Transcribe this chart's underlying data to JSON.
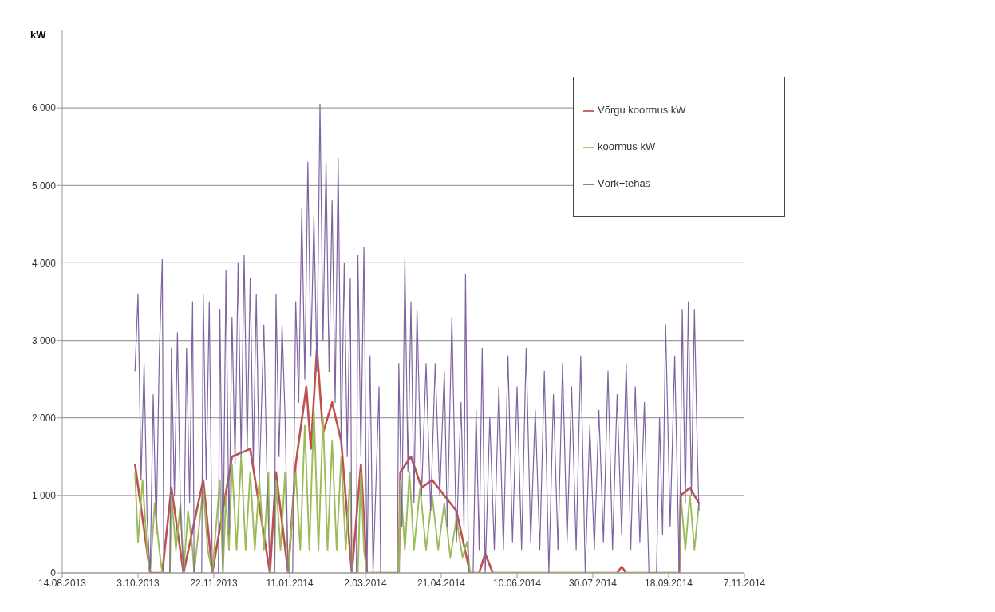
{
  "chart_data": {
    "type": "line",
    "ylabel": "kW",
    "xlim": [
      "2013-08-14",
      "2014-11-07"
    ],
    "xticks": [
      {
        "value": "2013-08-14",
        "label": "14.08.2013"
      },
      {
        "value": "2013-10-03",
        "label": "3.10.2013"
      },
      {
        "value": "2013-11-22",
        "label": "22.11.2013"
      },
      {
        "value": "2014-01-11",
        "label": "11.01.2014"
      },
      {
        "value": "2014-03-02",
        "label": "2.03.2014"
      },
      {
        "value": "2014-04-21",
        "label": "21.04.2014"
      },
      {
        "value": "2014-06-10",
        "label": "10.06.2014"
      },
      {
        "value": "2014-07-30",
        "label": "30.07.2014"
      },
      {
        "value": "2014-09-18",
        "label": "18.09.2014"
      },
      {
        "value": "2014-11-07",
        "label": "7.11.2014"
      }
    ],
    "ylim": [
      0,
      7000
    ],
    "yticks": [
      0,
      {
        "value": 1000,
        "label": "1 000"
      },
      {
        "value": 2000,
        "label": "2 000"
      },
      {
        "value": 3000,
        "label": "3 000"
      },
      {
        "value": 4000,
        "label": "4 000"
      },
      {
        "value": 5000,
        "label": "5 000"
      },
      {
        "value": 6000,
        "label": "6 000"
      }
    ],
    "grid": "y",
    "legend": "top right",
    "marker": "none",
    "line_style": "solid",
    "series": [
      {
        "name": "Võrgu koormus kW",
        "color": "#c0504d",
        "x": [
          "2013-10-01",
          "2013-10-11",
          "2013-10-19",
          "2013-10-25",
          "2013-11-02",
          "2013-11-15",
          "2013-11-21",
          "2013-12-04",
          "2013-12-16",
          "2013-12-29",
          "2014-01-02",
          "2014-01-10",
          "2014-01-15",
          "2014-01-22",
          "2014-01-25",
          "2014-01-29",
          "2014-02-02",
          "2014-02-08",
          "2014-02-14",
          "2014-02-21",
          "2014-02-27",
          "2014-03-03",
          "2014-03-24",
          "2014-03-25",
          "2014-04-01",
          "2014-04-08",
          "2014-04-15",
          "2014-04-23",
          "2014-05-01",
          "2014-05-10",
          "2014-05-16",
          "2014-05-20",
          "2014-05-25",
          "2014-08-15",
          "2014-08-18",
          "2014-08-21",
          "2014-09-25",
          "2014-09-26",
          "2014-10-02",
          "2014-10-08"
        ],
        "values": [
          1400,
          0,
          0,
          1100,
          0,
          1200,
          0,
          1500,
          1600,
          0,
          1300,
          0,
          1400,
          2400,
          1600,
          2900,
          1800,
          2200,
          1700,
          0,
          1400,
          0,
          0,
          1300,
          1500,
          1100,
          1200,
          1000,
          800,
          0,
          0,
          250,
          0,
          0,
          80,
          0,
          0,
          1000,
          1100,
          900
        ]
      },
      {
        "name": "koormus kW",
        "color": "#9bbb59",
        "x": [
          "2013-10-01",
          "2013-10-03",
          "2013-10-06",
          "2013-10-09",
          "2013-10-11",
          "2013-10-14",
          "2013-10-17",
          "2013-10-19",
          "2013-10-24",
          "2013-10-25",
          "2013-10-28",
          "2013-10-31",
          "2013-11-02",
          "2013-11-05",
          "2013-11-08",
          "2013-11-09",
          "2013-11-15",
          "2013-11-18",
          "2013-11-21",
          "2013-11-26",
          "2013-11-28",
          "2013-11-30",
          "2013-12-02",
          "2013-12-04",
          "2013-12-07",
          "2013-12-10",
          "2013-12-13",
          "2013-12-16",
          "2013-12-19",
          "2013-12-22",
          "2013-12-25",
          "2013-12-28",
          "2013-12-29",
          "2014-01-01",
          "2014-01-02",
          "2014-01-05",
          "2014-01-08",
          "2014-01-10",
          "2014-01-15",
          "2014-01-18",
          "2014-01-21",
          "2014-01-24",
          "2014-01-27",
          "2014-01-30",
          "2014-02-02",
          "2014-02-05",
          "2014-02-08",
          "2014-02-11",
          "2014-02-14",
          "2014-02-17",
          "2014-02-20",
          "2014-02-21",
          "2014-02-25",
          "2014-02-27",
          "2014-03-01",
          "2014-03-03",
          "2014-03-24",
          "2014-03-25",
          "2014-03-28",
          "2014-03-31",
          "2014-04-03",
          "2014-04-07",
          "2014-04-11",
          "2014-04-15",
          "2014-04-19",
          "2014-04-23",
          "2014-04-27",
          "2014-05-01",
          "2014-05-05",
          "2014-05-08",
          "2014-05-10",
          "2014-09-25",
          "2014-09-26",
          "2014-09-29",
          "2014-10-02",
          "2014-10-05",
          "2014-10-08"
        ],
        "values": [
          1300,
          400,
          1200,
          300,
          0,
          900,
          300,
          0,
          0,
          1000,
          300,
          900,
          0,
          800,
          300,
          0,
          1100,
          300,
          0,
          1200,
          0,
          1000,
          300,
          1400,
          300,
          1500,
          300,
          1300,
          300,
          1200,
          300,
          1300,
          0,
          0,
          1200,
          300,
          1300,
          0,
          1300,
          300,
          1900,
          300,
          2100,
          300,
          2000,
          300,
          1700,
          300,
          1500,
          300,
          1300,
          0,
          0,
          1300,
          300,
          0,
          0,
          1200,
          300,
          1300,
          300,
          1100,
          300,
          1000,
          300,
          900,
          200,
          700,
          200,
          400,
          0,
          0,
          1000,
          300,
          1000,
          300,
          900
        ]
      },
      {
        "name": "Võrk+tehas",
        "color": "#8064a2",
        "x": [
          "2013-10-01",
          "2013-10-03",
          "2013-10-05",
          "2013-10-07",
          "2013-10-09",
          "2013-10-11",
          "2013-10-13",
          "2013-10-15",
          "2013-10-17",
          "2013-10-19",
          "2013-10-20",
          "2013-10-24",
          "2013-10-25",
          "2013-10-27",
          "2013-10-29",
          "2013-10-31",
          "2013-11-02",
          "2013-11-04",
          "2013-11-06",
          "2013-11-08",
          "2013-11-09",
          "2013-11-14",
          "2013-11-15",
          "2013-11-17",
          "2013-11-19",
          "2013-11-21",
          "2013-11-25",
          "2013-11-26",
          "2013-11-28",
          "2013-11-30",
          "2013-12-02",
          "2013-12-04",
          "2013-12-06",
          "2013-12-08",
          "2013-12-10",
          "2013-12-12",
          "2013-12-14",
          "2013-12-16",
          "2013-12-18",
          "2013-12-20",
          "2013-12-22",
          "2013-12-25",
          "2013-12-27",
          "2013-12-29",
          "2014-01-01",
          "2014-01-02",
          "2014-01-04",
          "2014-01-06",
          "2014-01-08",
          "2014-01-10",
          "2014-01-13",
          "2014-01-15",
          "2014-01-17",
          "2014-01-19",
          "2014-01-21",
          "2014-01-23",
          "2014-01-25",
          "2014-01-27",
          "2014-01-29",
          "2014-01-31",
          "2014-02-02",
          "2014-02-04",
          "2014-02-06",
          "2014-02-08",
          "2014-02-10",
          "2014-02-12",
          "2014-02-14",
          "2014-02-16",
          "2014-02-18",
          "2014-02-20",
          "2014-02-21",
          "2014-02-24",
          "2014-02-25",
          "2014-02-27",
          "2014-03-01",
          "2014-03-03",
          "2014-03-05",
          "2014-03-07",
          "2014-03-11",
          "2014-03-12",
          "2014-03-23",
          "2014-03-24",
          "2014-03-26",
          "2014-03-28",
          "2014-03-30",
          "2014-04-01",
          "2014-04-03",
          "2014-04-05",
          "2014-04-08",
          "2014-04-11",
          "2014-04-14",
          "2014-04-17",
          "2014-04-20",
          "2014-04-23",
          "2014-04-25",
          "2014-04-28",
          "2014-05-01",
          "2014-05-04",
          "2014-05-06",
          "2014-05-07",
          "2014-05-09",
          "2014-05-12",
          "2014-05-14",
          "2014-05-16",
          "2014-05-18",
          "2014-05-20",
          "2014-05-23",
          "2014-05-26",
          "2014-05-29",
          "2014-06-01",
          "2014-06-04",
          "2014-06-07",
          "2014-06-10",
          "2014-06-13",
          "2014-06-16",
          "2014-06-19",
          "2014-06-22",
          "2014-06-25",
          "2014-06-28",
          "2014-07-01",
          "2014-07-04",
          "2014-07-07",
          "2014-07-10",
          "2014-07-13",
          "2014-07-16",
          "2014-07-19",
          "2014-07-22",
          "2014-07-25",
          "2014-07-28",
          "2014-07-31",
          "2014-08-03",
          "2014-08-06",
          "2014-08-09",
          "2014-08-12",
          "2014-08-15",
          "2014-08-18",
          "2014-08-21",
          "2014-08-24",
          "2014-08-27",
          "2014-08-30",
          "2014-09-02",
          "2014-09-05",
          "2014-09-10",
          "2014-09-12",
          "2014-09-14",
          "2014-09-16",
          "2014-09-19",
          "2014-09-22",
          "2014-09-25",
          "2014-09-27",
          "2014-09-29",
          "2014-10-01",
          "2014-10-03",
          "2014-10-05",
          "2014-10-07",
          "2014-10-08"
        ],
        "values": [
          2600,
          3600,
          1200,
          2700,
          700,
          0,
          2300,
          500,
          2800,
          4050,
          0,
          0,
          2900,
          1000,
          3100,
          800,
          0,
          2900,
          900,
          3500,
          0,
          0,
          3600,
          1200,
          3500,
          0,
          0,
          3400,
          0,
          3900,
          500,
          3300,
          1400,
          4000,
          1500,
          4100,
          1600,
          3800,
          1400,
          3600,
          1200,
          3200,
          1300,
          0,
          0,
          3600,
          1500,
          3200,
          2000,
          0,
          0,
          3500,
          2200,
          4700,
          2500,
          5300,
          2800,
          4600,
          2600,
          6050,
          3000,
          5300,
          2600,
          4800,
          2200,
          5350,
          1600,
          4000,
          1500,
          3800,
          0,
          0,
          4100,
          1500,
          4200,
          0,
          2800,
          0,
          2400,
          0,
          0,
          2700,
          600,
          4050,
          1300,
          3500,
          900,
          3400,
          1000,
          2700,
          800,
          2700,
          1000,
          2600,
          600,
          3300,
          400,
          2200,
          600,
          3850,
          0,
          0,
          2100,
          300,
          2900,
          0,
          2000,
          300,
          2400,
          300,
          2800,
          400,
          2400,
          300,
          2900,
          400,
          2100,
          300,
          2600,
          0,
          2300,
          300,
          2700,
          400,
          2400,
          300,
          2800,
          0,
          1900,
          300,
          2100,
          400,
          2600,
          300,
          2300,
          500,
          2700,
          300,
          2400,
          400,
          2200,
          0,
          0,
          2000,
          500,
          3200,
          600,
          2800,
          0,
          3400,
          900,
          3500,
          1000,
          3400,
          1500,
          800
        ]
      }
    ]
  }
}
